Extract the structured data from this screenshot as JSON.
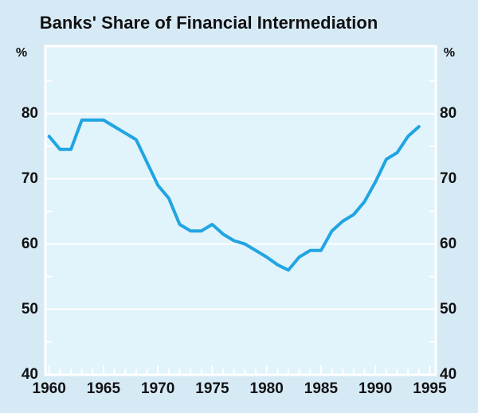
{
  "title": "Banks' Share of Financial Intermediation",
  "axes": {
    "left_unit_label": "%",
    "right_unit_label": "%",
    "y_tick_labels": [
      80,
      70,
      60,
      50,
      40
    ],
    "x_tick_labels": [
      1960,
      1965,
      1970,
      1975,
      1980,
      1985,
      1990,
      1995
    ]
  },
  "chart_data": {
    "type": "line",
    "title": "Banks' Share of Financial Intermediation",
    "xlabel": "",
    "ylabel": "%",
    "ylim": [
      40,
      90
    ],
    "xlim": [
      1960,
      1995
    ],
    "grid": "horizontal white gridlines at 50, 60, 70, 80; minor side ticks at 45, 55, 65, 75, 85; yearly bottom ticks, taller every 5 years",
    "legend_position": "none",
    "x": [
      1960,
      1961,
      1962,
      1963,
      1964,
      1965,
      1966,
      1967,
      1968,
      1969,
      1970,
      1971,
      1972,
      1973,
      1974,
      1975,
      1976,
      1977,
      1978,
      1979,
      1980,
      1981,
      1982,
      1983,
      1984,
      1985,
      1986,
      1987,
      1988,
      1989,
      1990,
      1991,
      1992,
      1993,
      1994
    ],
    "values": [
      76.5,
      74.5,
      74.5,
      79,
      79,
      79,
      78,
      77,
      76,
      72.5,
      69,
      67,
      63,
      62,
      62,
      63,
      61.5,
      60.5,
      60,
      59,
      58,
      56.8,
      56,
      58,
      59,
      59,
      62,
      63.5,
      64.5,
      66.5,
      69.5,
      73,
      74,
      76.5,
      78
    ],
    "colors": {
      "line": "#21A5E2",
      "outer_background": "#D6EAF6",
      "plot_background": "#E1F3FB",
      "gridline": "#FFFFFF",
      "text": "#111111"
    }
  }
}
